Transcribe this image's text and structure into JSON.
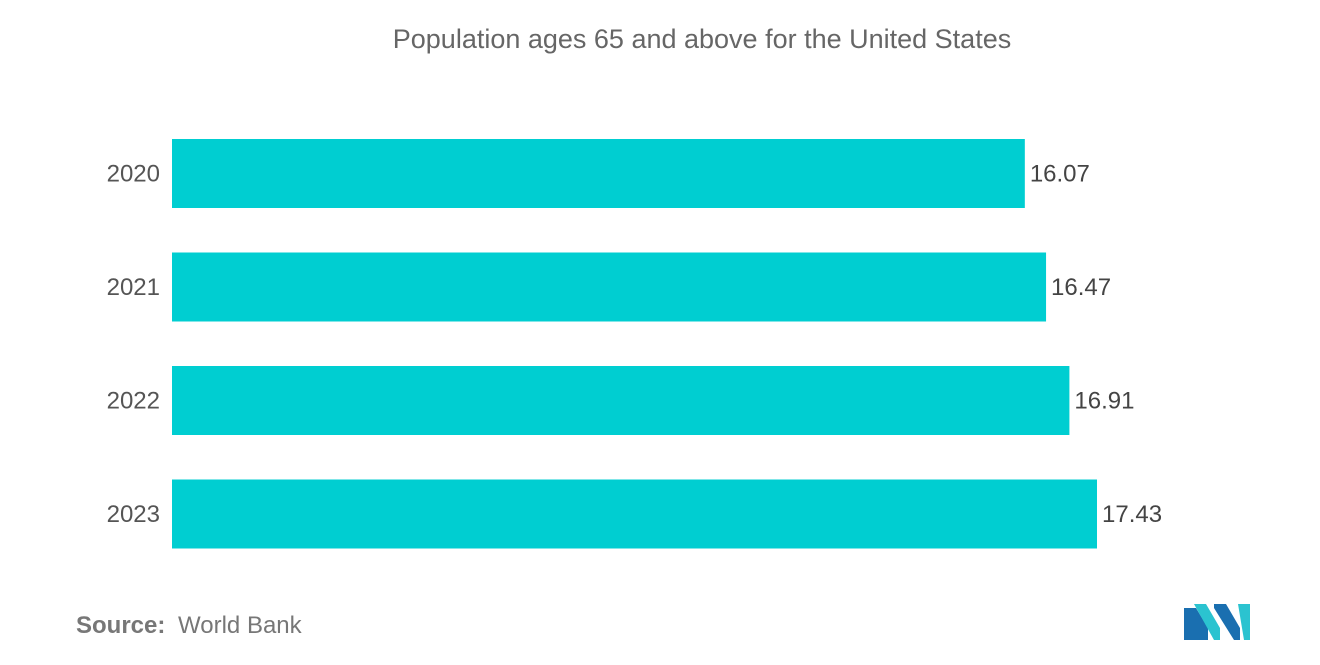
{
  "chart_data": {
    "type": "bar",
    "orientation": "horizontal",
    "title": "Population ages 65 and above for the United States",
    "categories": [
      "2020",
      "2021",
      "2022",
      "2023"
    ],
    "values": [
      16.07,
      16.47,
      16.91,
      17.43
    ],
    "value_labels": [
      "16.07",
      "16.47",
      "16.91",
      "17.43"
    ],
    "xlim": [
      0,
      17.43
    ],
    "grid": false,
    "legend": "none",
    "bar_color": "#00CED1"
  },
  "source": {
    "prefix": "Source:",
    "name": "World Bank"
  },
  "logo": {
    "icon": "mordor-intelligence-logo",
    "colors": [
      "#1a6fb0",
      "#2bc3d0"
    ]
  }
}
